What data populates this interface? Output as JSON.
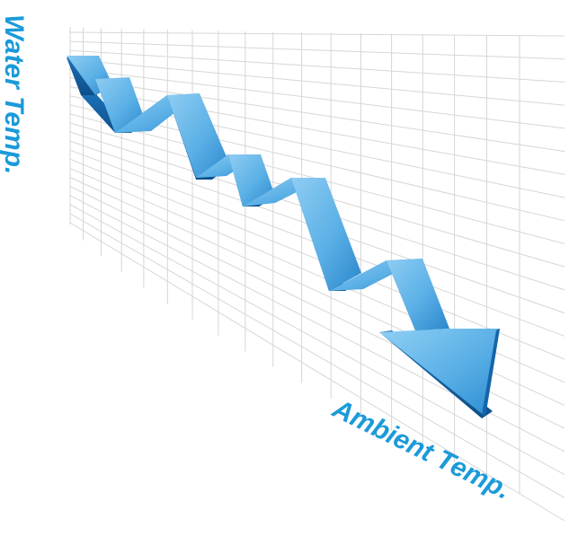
{
  "labels": {
    "y_axis": "Water Temp.",
    "x_axis": "Ambient Temp."
  },
  "colors": {
    "label_blue": "#1b9ad9",
    "arrow_face_light": "#7cc4f0",
    "arrow_face_dark": "#2a86cc",
    "arrow_side": "#1565a8",
    "arrow_side_dark": "#0e4f88",
    "grid_line": "#d2d2d2",
    "background": "#ffffff"
  },
  "graphic": {
    "type": "descending-staircase-arrow",
    "direction": "down-right",
    "steps": 6
  }
}
